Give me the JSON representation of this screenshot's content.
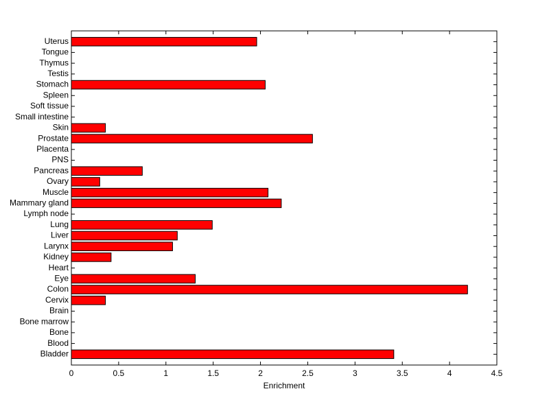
{
  "chart_data": {
    "type": "barh",
    "xlabel": "Enrichment",
    "categories": [
      "Bladder",
      "Blood",
      "Bone",
      "Bone marrow",
      "Brain",
      "Cervix",
      "Colon",
      "Eye",
      "Heart",
      "Kidney",
      "Larynx",
      "Liver",
      "Lung",
      "Lymph node",
      "Mammary gland",
      "Muscle",
      "Ovary",
      "Pancreas",
      "PNS",
      "Placenta",
      "Prostate",
      "Skin",
      "Small intestine",
      "Soft tissue",
      "Spleen",
      "Stomach",
      "Testis",
      "Thymus",
      "Tongue",
      "Uterus"
    ],
    "values": [
      3.41,
      0,
      0,
      0,
      0,
      0.36,
      4.19,
      1.31,
      0,
      0.42,
      1.07,
      1.12,
      1.49,
      0,
      2.22,
      2.08,
      0.3,
      0.75,
      0,
      0,
      2.55,
      0.36,
      0,
      0,
      0,
      2.05,
      0,
      0,
      0,
      1.96
    ],
    "color": "#ff0000",
    "xlim": [
      0,
      4.5
    ],
    "xticks": [
      0,
      0.5,
      1,
      1.5,
      2,
      2.5,
      3,
      3.5,
      4,
      4.5
    ]
  }
}
